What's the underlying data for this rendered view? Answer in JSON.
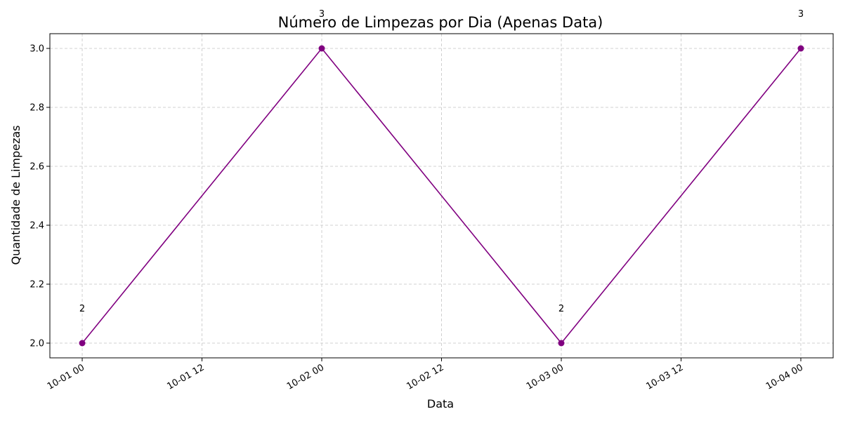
{
  "chart_data": {
    "type": "line",
    "title": "Número de Limpezas por Dia (Apenas Data)",
    "xlabel": "Data",
    "ylabel": "Quantidade de Limpezas",
    "x_type": "datetime",
    "x": [
      "2023-10-01 00:00",
      "2023-10-02 00:00",
      "2023-10-03 00:00",
      "2023-10-04 00:00"
    ],
    "series": [
      {
        "values": [
          2,
          3,
          2,
          3
        ],
        "color": "#800080",
        "marker": "circle",
        "data_labels": [
          "2",
          "3",
          "2",
          "3"
        ]
      }
    ],
    "x_ticks": [
      "10-01 00",
      "10-01 12",
      "10-02 00",
      "10-02 12",
      "10-03 00",
      "10-03 12",
      "10-04 00"
    ],
    "y_ticks": [
      "2.0",
      "2.2",
      "2.4",
      "2.6",
      "2.8",
      "3.0"
    ],
    "ylim": [
      1.95,
      3.05
    ],
    "grid": true,
    "legend": "none"
  }
}
